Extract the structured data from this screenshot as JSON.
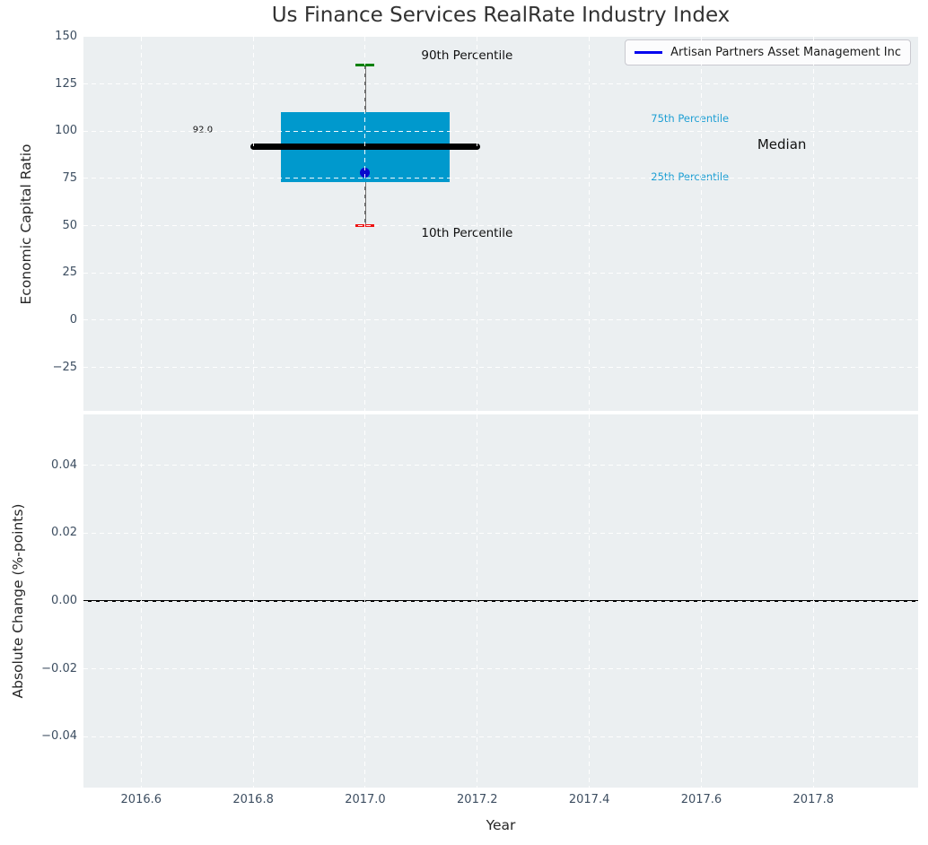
{
  "figure": {
    "title": "Us Finance Services RealRate Industry Index",
    "xlabel": "Year",
    "plot_background": "#ebeff1",
    "tick_color": "#3d4e61"
  },
  "legend": {
    "label": "Artisan Partners Asset Management Inc",
    "line_color": "#0202ee",
    "position": "upper right"
  },
  "chart_data": [
    {
      "type": "box",
      "title": "Us Finance Services RealRate Industry Index",
      "ylabel": "Economic Capital Ratio",
      "x": 2017.0,
      "percentiles": {
        "p10": 50,
        "p25": 73,
        "median": 92,
        "p75": 110,
        "p90": 135
      },
      "median_value_label": "92.0",
      "company_point": {
        "name": "Artisan Partners Asset Management Inc",
        "x": 2017.0,
        "y": 78
      },
      "box_half_width": 0.15,
      "median_half_width": 0.2,
      "xlim": [
        2016.497,
        2017.987
      ],
      "ylim": [
        -48,
        150
      ],
      "grid": true,
      "yticks": [
        {
          "v": 150,
          "label": "150"
        },
        {
          "v": 125,
          "label": "125"
        },
        {
          "v": 100,
          "label": "100"
        },
        {
          "v": 75,
          "label": "75"
        },
        {
          "v": 50,
          "label": "50"
        },
        {
          "v": 25,
          "label": "25"
        },
        {
          "v": 0,
          "label": "0"
        },
        {
          "v": -25,
          "label": "−25"
        }
      ],
      "annotations": [
        {
          "id": "p90-label",
          "text": "90th Percentile",
          "x": 2017.1,
          "y": 140,
          "color": "#111111",
          "size": 13.5,
          "anchor": "left"
        },
        {
          "id": "p10-label",
          "text": "10th Percentile",
          "x": 2017.1,
          "y": 46,
          "color": "#111111",
          "size": 13.5,
          "anchor": "left"
        },
        {
          "id": "p75-label",
          "text": "75th Percentile",
          "x": 2017.51,
          "y": 107,
          "color": "#1e9fd4",
          "size": 11.5,
          "anchor": "left"
        },
        {
          "id": "p25-label",
          "text": "25th Percentile",
          "x": 2017.51,
          "y": 76,
          "color": "#1e9fd4",
          "size": 11.5,
          "anchor": "left"
        },
        {
          "id": "median-label",
          "text": "Median",
          "x": 2017.7,
          "y": 93,
          "color": "#111111",
          "size": 15,
          "anchor": "left"
        },
        {
          "id": "median-value-label",
          "text": "92.0",
          "x": 2016.71,
          "y": 100.5,
          "color": "#111111",
          "size": 10,
          "anchor": "center"
        }
      ],
      "colors": {
        "box": "#0099cd",
        "median_line": "#000000",
        "whisker": "#6d6d6d",
        "p90_cap": "#008000",
        "p10_cap": "#ee1111",
        "company_marker": "#0909cd"
      }
    },
    {
      "type": "line",
      "ylabel": "Absolute Change (%-points)",
      "xlabel": "Year",
      "series": [],
      "zero_line": 0.0,
      "xlim": [
        2016.497,
        2017.987
      ],
      "ylim": [
        -0.055,
        0.055
      ],
      "grid": true,
      "yticks": [
        {
          "v": 0.04,
          "label": "0.04"
        },
        {
          "v": 0.02,
          "label": "0.02"
        },
        {
          "v": 0,
          "label": "0.00"
        },
        {
          "v": -0.02,
          "label": "−0.02"
        },
        {
          "v": -0.04,
          "label": "−0.04"
        }
      ],
      "xticks": [
        {
          "v": 2016.6,
          "label": "2016.6"
        },
        {
          "v": 2016.8,
          "label": "2016.8"
        },
        {
          "v": 2017.0,
          "label": "2017.0"
        },
        {
          "v": 2017.2,
          "label": "2017.2"
        },
        {
          "v": 2017.4,
          "label": "2017.4"
        },
        {
          "v": 2017.6,
          "label": "2017.6"
        },
        {
          "v": 2017.8,
          "label": "2017.8"
        }
      ]
    }
  ]
}
